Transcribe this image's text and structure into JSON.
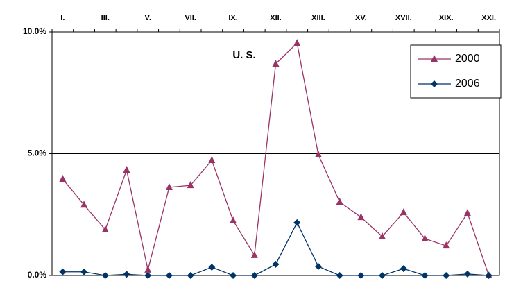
{
  "chart_data": {
    "type": "line",
    "title": "U. S.",
    "categories": [
      "I.",
      null,
      "III.",
      null,
      "V.",
      null,
      "VII.",
      null,
      "IX.",
      null,
      "XII.",
      null,
      "XIII.",
      null,
      "XV.",
      null,
      "XVII.",
      null,
      "XIX.",
      null,
      "XXI."
    ],
    "series": [
      {
        "name": "2000",
        "color": "#993366",
        "marker": "triangle",
        "values": [
          3.96,
          2.9,
          1.88,
          4.33,
          0.23,
          3.62,
          3.7,
          4.73,
          2.25,
          0.83,
          8.69,
          9.54,
          4.96,
          3.02,
          2.39,
          1.6,
          2.59,
          1.51,
          1.22,
          2.56,
          0
        ]
      },
      {
        "name": "2006",
        "color": "#003366",
        "marker": "diamond",
        "values": [
          0.15,
          0.15,
          0,
          0.05,
          0,
          0,
          0,
          0.34,
          0,
          0,
          0.46,
          2.17,
          0.37,
          0,
          0,
          0,
          0.28,
          0,
          0,
          0.06,
          0
        ]
      }
    ],
    "ylim": [
      0,
      10
    ],
    "yticks": [
      {
        "value": 0,
        "label": "0.0%"
      },
      {
        "value": 5,
        "label": "5.0%"
      },
      {
        "value": 10,
        "label": "10.0%"
      }
    ],
    "grid": true,
    "legend": "upper right"
  }
}
